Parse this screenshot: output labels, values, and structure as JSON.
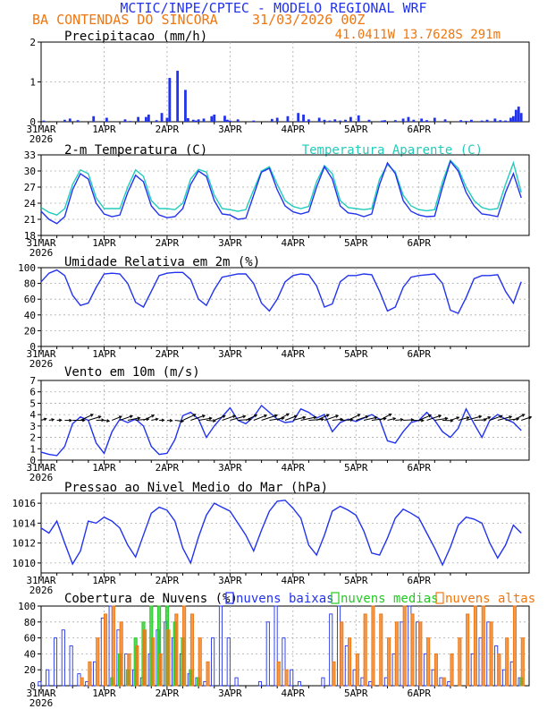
{
  "header": {
    "title": "MCTIC/INPE/CPTEC - MODELO REGIONAL WRF",
    "location": "BA CONTENDAS DO SINCORA",
    "run": "31/03/2026 00Z",
    "coords": "41.0411W 13.7628S 291m"
  },
  "colors": {
    "title": "#2233ee",
    "orange": "#ee7711",
    "blue": "#2233ee",
    "cyan": "#22ccbb",
    "green": "#22cc22",
    "bar": "#2233ee",
    "grid": "#aaaaaa"
  },
  "days": [
    "31MAR",
    "1APR",
    "2APR",
    "3APR",
    "4APR",
    "5APR",
    "6APR"
  ],
  "first_day_year": "2026",
  "chart_data": [
    {
      "type": "bar",
      "key": "precip",
      "title": "Precipitacao (mm/h)",
      "x_unit": "hours from 31/03/2026 00Z",
      "ylim": [
        0,
        2
      ],
      "yticks": [
        0,
        1,
        2
      ],
      "x": [
        1,
        9,
        11,
        14,
        20,
        25,
        32,
        34,
        37,
        40,
        41,
        44,
        46,
        48,
        49,
        52,
        55,
        56,
        58,
        59,
        60,
        62,
        65,
        66,
        70,
        71,
        72,
        75,
        81,
        88,
        90,
        94,
        98,
        100,
        102,
        106,
        108,
        110,
        112,
        114,
        116,
        118,
        121,
        125,
        130,
        131,
        135,
        138,
        140,
        142,
        145,
        147,
        150,
        154,
        160,
        162,
        164,
        168,
        170,
        173,
        175,
        177,
        179,
        180,
        181,
        182,
        183
      ],
      "values": [
        0.03,
        0.05,
        0.08,
        0.04,
        0.14,
        0.1,
        0.06,
        0.02,
        0.12,
        0.12,
        0.18,
        0.04,
        0.22,
        0.1,
        1.1,
        1.28,
        0.8,
        0.09,
        0.05,
        0.03,
        0.06,
        0.08,
        0.14,
        0.18,
        0.15,
        0.05,
        0.03,
        0.06,
        0.03,
        0.07,
        0.1,
        0.14,
        0.22,
        0.18,
        0.06,
        0.1,
        0.05,
        0.03,
        0.06,
        0.03,
        0.05,
        0.12,
        0.16,
        0.05,
        0.03,
        0.04,
        0.04,
        0.08,
        0.12,
        0.05,
        0.08,
        0.04,
        0.1,
        0.06,
        0.04,
        0.02,
        0.05,
        0.03,
        0.05,
        0.08,
        0.04,
        0.03,
        0.1,
        0.14,
        0.3,
        0.38,
        0.22
      ]
    },
    {
      "type": "line",
      "key": "temp",
      "title": "2-m Temperatura (C)",
      "ylim": [
        18,
        33
      ],
      "yticks": [
        18,
        21,
        24,
        27,
        30,
        33
      ],
      "x": [
        0,
        3,
        6,
        9,
        12,
        15,
        18,
        21,
        24,
        27,
        30,
        33,
        36,
        39,
        42,
        45,
        48,
        51,
        54,
        57,
        60,
        63,
        66,
        69,
        72,
        75,
        78,
        81,
        84,
        87,
        90,
        93,
        96,
        99,
        102,
        105,
        108,
        111,
        114,
        117,
        120,
        123,
        126,
        129,
        132,
        135,
        138,
        141,
        144,
        147,
        150,
        153,
        156,
        159,
        162,
        165,
        168,
        171,
        174,
        177,
        180,
        183
      ],
      "series": [
        {
          "name": "2-m Temperatura (C)",
          "values": [
            22.5,
            21.0,
            20.2,
            21.5,
            26.5,
            29.5,
            28.5,
            24.0,
            22.0,
            21.5,
            21.8,
            26.0,
            29.2,
            28.0,
            23.5,
            21.8,
            21.3,
            21.5,
            23.0,
            27.5,
            30.0,
            29.0,
            24.5,
            22.0,
            21.8,
            21.0,
            21.2,
            25.5,
            29.8,
            30.5,
            26.5,
            23.5,
            22.4,
            22.0,
            22.4,
            27.0,
            30.8,
            28.5,
            23.5,
            22.2,
            22.0,
            21.5,
            22.0,
            27.5,
            31.5,
            29.5,
            24.5,
            22.5,
            21.8,
            21.5,
            21.6,
            27.0,
            31.8,
            30.0,
            26.0,
            23.5,
            22.0,
            21.8,
            21.5,
            26.0,
            29.5,
            25.0
          ]
        },
        {
          "name": "Temperatura Aparente (C)",
          "values": [
            23.2,
            22.3,
            21.8,
            23.0,
            27.5,
            30.2,
            29.5,
            25.0,
            23.0,
            23.0,
            23.0,
            27.0,
            30.2,
            29.0,
            24.5,
            23.0,
            23.0,
            22.8,
            24.0,
            28.5,
            30.3,
            29.8,
            25.5,
            23.0,
            22.8,
            22.5,
            22.8,
            26.5,
            30.0,
            30.8,
            27.5,
            24.5,
            23.4,
            23.0,
            23.4,
            28.0,
            31.0,
            29.5,
            24.5,
            23.2,
            23.0,
            22.8,
            23.0,
            28.5,
            31.2,
            29.8,
            25.5,
            23.5,
            22.8,
            22.6,
            22.8,
            28.0,
            32.0,
            30.5,
            27.0,
            24.5,
            23.2,
            22.8,
            23.0,
            27.5,
            31.5,
            26.0
          ]
        }
      ]
    },
    {
      "type": "line",
      "key": "rh",
      "title": "Umidade Relativa em 2m (%)",
      "ylim": [
        0,
        100
      ],
      "yticks": [
        0,
        20,
        40,
        60,
        80,
        100
      ],
      "x": [
        0,
        3,
        6,
        9,
        12,
        15,
        18,
        21,
        24,
        27,
        30,
        33,
        36,
        39,
        42,
        45,
        48,
        51,
        54,
        57,
        60,
        63,
        66,
        69,
        72,
        75,
        78,
        81,
        84,
        87,
        90,
        93,
        96,
        99,
        102,
        105,
        108,
        111,
        114,
        117,
        120,
        123,
        126,
        129,
        132,
        135,
        138,
        141,
        144,
        147,
        150,
        153,
        156,
        159,
        162,
        165,
        168,
        171,
        174,
        177,
        180,
        183
      ],
      "series": [
        {
          "name": "Umidade Relativa",
          "values": [
            82,
            93,
            97,
            90,
            65,
            52,
            55,
            75,
            92,
            93,
            92,
            80,
            56,
            50,
            70,
            90,
            93,
            94,
            94,
            85,
            60,
            52,
            72,
            88,
            90,
            92,
            92,
            80,
            55,
            45,
            60,
            82,
            90,
            92,
            91,
            77,
            50,
            54,
            82,
            90,
            90,
            92,
            91,
            70,
            45,
            50,
            75,
            88,
            90,
            91,
            92,
            80,
            46,
            42,
            62,
            86,
            90,
            90,
            91,
            70,
            55,
            82
          ]
        }
      ]
    },
    {
      "type": "line",
      "key": "wind",
      "title": "Vento em 10m (m/s)",
      "ylim": [
        0,
        7
      ],
      "yticks": [
        0,
        1,
        2,
        3,
        4,
        5,
        6,
        7
      ],
      "arrow_level": 3.5,
      "x": [
        0,
        3,
        6,
        9,
        12,
        15,
        18,
        21,
        24,
        27,
        30,
        33,
        36,
        39,
        42,
        45,
        48,
        51,
        54,
        57,
        60,
        63,
        66,
        69,
        72,
        75,
        78,
        81,
        84,
        87,
        90,
        93,
        96,
        99,
        102,
        105,
        108,
        111,
        114,
        117,
        120,
        123,
        126,
        129,
        132,
        135,
        138,
        141,
        144,
        147,
        150,
        153,
        156,
        159,
        162,
        165,
        168,
        171,
        174,
        177,
        180,
        183
      ],
      "series": [
        {
          "name": "Vento em 10m",
          "values": [
            0.7,
            0.5,
            0.4,
            1.2,
            3.2,
            3.8,
            3.5,
            1.5,
            0.6,
            2.5,
            3.6,
            3.3,
            3.6,
            3.0,
            1.2,
            0.5,
            0.6,
            1.8,
            3.9,
            4.2,
            3.6,
            2.0,
            3.0,
            3.8,
            4.6,
            3.5,
            3.2,
            3.8,
            4.8,
            4.2,
            3.6,
            3.3,
            3.4,
            4.5,
            4.2,
            3.7,
            4.0,
            2.5,
            3.3,
            3.6,
            3.4,
            3.7,
            4.0,
            3.6,
            1.7,
            1.5,
            2.5,
            3.3,
            3.5,
            4.2,
            3.5,
            2.5,
            2.0,
            2.8,
            4.5,
            3.2,
            2.0,
            3.5,
            4.0,
            3.6,
            3.3,
            2.6
          ]
        }
      ]
    },
    {
      "type": "line",
      "key": "pres",
      "title": "Pressao ao Nivel Medio do Mar (hPa)",
      "ylim": [
        1009,
        1017
      ],
      "yticks": [
        1010,
        1012,
        1014,
        1016
      ],
      "x": [
        0,
        3,
        6,
        9,
        12,
        15,
        18,
        21,
        24,
        27,
        30,
        33,
        36,
        39,
        42,
        45,
        48,
        51,
        54,
        57,
        60,
        63,
        66,
        69,
        72,
        75,
        78,
        81,
        84,
        87,
        90,
        93,
        96,
        99,
        102,
        105,
        108,
        111,
        114,
        117,
        120,
        123,
        126,
        129,
        132,
        135,
        138,
        141,
        144,
        147,
        150,
        153,
        156,
        159,
        162,
        165,
        168,
        171,
        174,
        177,
        180,
        183
      ],
      "series": [
        {
          "name": "Pressao",
          "values": [
            1013.5,
            1013.0,
            1014.2,
            1012.0,
            1009.9,
            1011.2,
            1014.2,
            1014.0,
            1014.6,
            1014.2,
            1013.5,
            1011.8,
            1010.6,
            1012.8,
            1015.0,
            1015.6,
            1015.3,
            1014.2,
            1011.5,
            1010.0,
            1012.6,
            1014.8,
            1016.0,
            1015.6,
            1015.2,
            1014.0,
            1012.8,
            1011.2,
            1013.3,
            1015.2,
            1016.2,
            1016.3,
            1015.5,
            1014.5,
            1011.8,
            1010.8,
            1012.8,
            1015.2,
            1015.7,
            1015.3,
            1014.8,
            1013.2,
            1011.0,
            1010.8,
            1012.5,
            1014.5,
            1015.4,
            1015.0,
            1014.5,
            1013.0,
            1011.5,
            1009.8,
            1011.6,
            1013.8,
            1014.6,
            1014.4,
            1014.0,
            1012.0,
            1010.5,
            1011.8,
            1013.8,
            1013.0
          ]
        }
      ]
    },
    {
      "type": "bar",
      "key": "clouds",
      "title": "Cobertura de Nuvens (%)",
      "legend": [
        "nuvens baixas",
        "nuvens medias",
        "nuvens altas"
      ],
      "ylim": [
        0,
        100
      ],
      "yticks": [
        0,
        20,
        40,
        60,
        80,
        100
      ],
      "x": [
        0,
        3,
        6,
        9,
        12,
        15,
        18,
        21,
        24,
        27,
        30,
        33,
        36,
        39,
        42,
        45,
        48,
        51,
        54,
        57,
        60,
        63,
        66,
        69,
        72,
        75,
        78,
        81,
        84,
        87,
        90,
        93,
        96,
        99,
        102,
        105,
        108,
        111,
        114,
        117,
        120,
        123,
        126,
        129,
        132,
        135,
        138,
        141,
        144,
        147,
        150,
        153,
        156,
        159,
        162,
        165,
        168,
        171,
        174,
        177,
        180,
        183
      ],
      "series": [
        {
          "name": "nuvens baixas",
          "values": [
            5,
            20,
            60,
            70,
            50,
            15,
            5,
            30,
            85,
            100,
            70,
            40,
            20,
            10,
            40,
            70,
            80,
            60,
            40,
            15,
            10,
            5,
            60,
            100,
            60,
            10,
            0,
            0,
            5,
            80,
            100,
            60,
            20,
            5,
            0,
            0,
            10,
            90,
            100,
            50,
            20,
            10,
            5,
            0,
            10,
            40,
            80,
            100,
            80,
            40,
            20,
            10,
            5,
            0,
            0,
            40,
            60,
            80,
            50,
            20,
            30,
            10
          ]
        },
        {
          "name": "nuvens medias",
          "values": [
            0,
            0,
            0,
            0,
            0,
            0,
            0,
            0,
            0,
            10,
            40,
            20,
            60,
            80,
            100,
            100,
            100,
            80,
            60,
            20,
            10,
            0,
            0,
            0,
            0,
            0,
            0,
            0,
            0,
            0,
            0,
            0,
            0,
            0,
            0,
            0,
            0,
            0,
            0,
            0,
            0,
            0,
            0,
            0,
            0,
            0,
            0,
            0,
            0,
            0,
            0,
            0,
            0,
            0,
            0,
            0,
            0,
            0,
            0,
            0,
            0,
            10
          ]
        },
        {
          "name": "nuvens altas",
          "values": [
            0,
            0,
            0,
            0,
            0,
            10,
            30,
            60,
            90,
            100,
            80,
            40,
            50,
            70,
            60,
            40,
            70,
            90,
            100,
            90,
            60,
            30,
            0,
            0,
            0,
            0,
            0,
            0,
            0,
            0,
            30,
            20,
            0,
            0,
            0,
            0,
            0,
            30,
            80,
            60,
            40,
            90,
            100,
            90,
            60,
            80,
            100,
            90,
            80,
            60,
            40,
            10,
            40,
            60,
            90,
            100,
            100,
            80,
            40,
            60,
            100,
            60
          ]
        }
      ]
    }
  ]
}
